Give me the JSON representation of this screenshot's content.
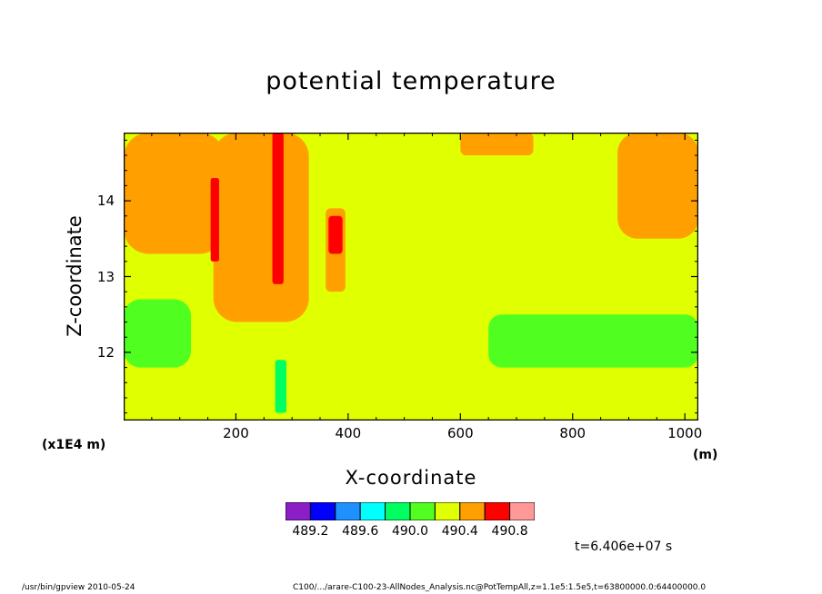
{
  "chart_data": {
    "type": "heatmap",
    "title": "potential temperature",
    "xlabel": "X-coordinate",
    "ylabel": "Z-coordinate",
    "x_scale_label": "(x1E4 m)",
    "x_unit_label": "(m)",
    "xlim": [
      0,
      1024
    ],
    "ylim": [
      11.1,
      14.9
    ],
    "x_ticks": [
      200,
      400,
      600,
      800,
      1000
    ],
    "y_ticks": [
      12,
      13,
      14
    ],
    "colorbar": {
      "levels": [
        489.0,
        489.2,
        489.4,
        489.6,
        489.8,
        490.0,
        490.2,
        490.4,
        490.6,
        490.8,
        491.0
      ],
      "colors": [
        "#8c1ec8",
        "#0000ff",
        "#1e90ff",
        "#00ffff",
        "#00ff60",
        "#50ff20",
        "#e0ff00",
        "#ffa000",
        "#ff0000",
        "#ff9999"
      ],
      "labels": [
        "489.2",
        "489.6",
        "490.0",
        "490.4",
        "490.8"
      ]
    },
    "regions": [
      {
        "band": "490.4-490.6",
        "x": [
          0,
          180
        ],
        "z": [
          13.3,
          14.9
        ]
      },
      {
        "band": "490.4-490.6",
        "x": [
          160,
          330
        ],
        "z": [
          12.4,
          14.9
        ]
      },
      {
        "band": "490.6-490.8",
        "x": [
          265,
          285
        ],
        "z": [
          12.9,
          14.9
        ]
      },
      {
        "band": "490.6-490.8",
        "x": [
          155,
          170
        ],
        "z": [
          13.2,
          14.3
        ]
      },
      {
        "band": "490.4-490.6",
        "x": [
          360,
          395
        ],
        "z": [
          12.8,
          13.9
        ]
      },
      {
        "band": "490.6-490.8",
        "x": [
          365,
          390
        ],
        "z": [
          13.3,
          13.8
        ]
      },
      {
        "band": "490.4-490.6",
        "x": [
          600,
          730
        ],
        "z": [
          14.6,
          14.9
        ]
      },
      {
        "band": "490.4-490.6",
        "x": [
          880,
          1024
        ],
        "z": [
          13.5,
          14.9
        ]
      },
      {
        "band": "490.0-490.2",
        "x": [
          0,
          120
        ],
        "z": [
          11.8,
          12.7
        ]
      },
      {
        "band": "490.0-490.2",
        "x": [
          650,
          1024
        ],
        "z": [
          11.8,
          12.5
        ]
      },
      {
        "band": "489.8-490.0",
        "x": [
          270,
          290
        ],
        "z": [
          11.2,
          11.9
        ]
      }
    ]
  },
  "annotations": {
    "time": "t=6.406e+07 s"
  },
  "footer": {
    "left": "/usr/bin/gpview   2010-05-24",
    "right": "C100/.../arare-C100-23-AllNodes_Analysis.nc@PotTempAll,z=1.1e5:1.5e5,t=63800000.0:64400000.0"
  }
}
